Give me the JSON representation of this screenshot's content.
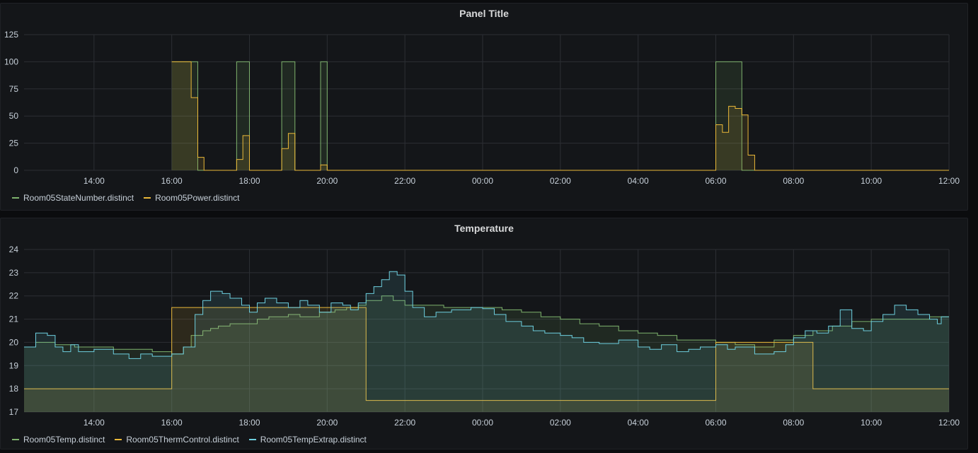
{
  "colors": {
    "green": "#7eb26d",
    "yellow": "#eab839",
    "blue": "#6ed0e0",
    "grid": "#2c2f34"
  },
  "panels": [
    {
      "title": "Panel Title"
    },
    {
      "title": "Temperature"
    }
  ],
  "chart_data": [
    {
      "type": "line",
      "step": true,
      "fill": true,
      "title": "Panel Title",
      "x_unit": "hours since 12:00",
      "xlim": [
        0.2,
        24
      ],
      "x_ticks": [
        2,
        4,
        6,
        8,
        10,
        12,
        14,
        16,
        18,
        20,
        22,
        24
      ],
      "x_tick_labels": [
        "14:00",
        "16:00",
        "18:00",
        "20:00",
        "22:00",
        "00:00",
        "02:00",
        "04:00",
        "06:00",
        "08:00",
        "10:00",
        "12:00"
      ],
      "ylim": [
        0,
        125
      ],
      "y_ticks": [
        0,
        25,
        50,
        75,
        100,
        125
      ],
      "legend": "bottom-left",
      "series": [
        {
          "name": "Room05StateNumber.distinct",
          "color": "#7eb26d",
          "points": [
            [
              4.0,
              100
            ],
            [
              4.67,
              0
            ],
            [
              5.67,
              100
            ],
            [
              6.0,
              0
            ],
            [
              6.83,
              100
            ],
            [
              7.17,
              0
            ],
            [
              7.83,
              100
            ],
            [
              8.0,
              0
            ],
            [
              18.0,
              100
            ],
            [
              18.67,
              0
            ]
          ]
        },
        {
          "name": "Room05Power.distinct",
          "color": "#eab839",
          "points": [
            [
              4.0,
              100
            ],
            [
              4.5,
              67
            ],
            [
              4.67,
              12
            ],
            [
              4.83,
              0
            ],
            [
              5.67,
              10
            ],
            [
              5.83,
              32
            ],
            [
              6.0,
              0
            ],
            [
              6.83,
              20
            ],
            [
              7.0,
              34
            ],
            [
              7.17,
              0
            ],
            [
              7.83,
              5
            ],
            [
              8.0,
              0
            ],
            [
              18.0,
              42
            ],
            [
              18.17,
              35
            ],
            [
              18.33,
              59
            ],
            [
              18.5,
              57
            ],
            [
              18.67,
              51
            ],
            [
              18.83,
              14
            ],
            [
              19.0,
              0
            ]
          ]
        }
      ]
    },
    {
      "type": "line",
      "step": true,
      "fill": true,
      "title": "Temperature",
      "x_unit": "hours since 12:00",
      "xlim": [
        0.2,
        24
      ],
      "x_ticks": [
        2,
        4,
        6,
        8,
        10,
        12,
        14,
        16,
        18,
        20,
        22,
        24
      ],
      "x_tick_labels": [
        "14:00",
        "16:00",
        "18:00",
        "20:00",
        "22:00",
        "00:00",
        "02:00",
        "04:00",
        "06:00",
        "08:00",
        "10:00",
        "12:00"
      ],
      "ylim": [
        17,
        24
      ],
      "y_ticks": [
        17,
        18,
        19,
        20,
        21,
        22,
        23,
        24
      ],
      "legend": "bottom-left",
      "series": [
        {
          "name": "Room05Temp.distinct",
          "color": "#7eb26d",
          "points": [
            [
              0.2,
              19.8
            ],
            [
              0.5,
              20.0
            ],
            [
              1.0,
              19.9
            ],
            [
              1.5,
              19.8
            ],
            [
              2.5,
              19.7
            ],
            [
              3.5,
              19.6
            ],
            [
              4.0,
              19.5
            ],
            [
              4.3,
              19.8
            ],
            [
              4.5,
              20.3
            ],
            [
              4.8,
              20.5
            ],
            [
              5.0,
              20.6
            ],
            [
              5.2,
              20.7
            ],
            [
              5.5,
              20.8
            ],
            [
              6.0,
              20.8
            ],
            [
              6.2,
              21.0
            ],
            [
              6.5,
              21.1
            ],
            [
              7.0,
              21.2
            ],
            [
              7.3,
              21.1
            ],
            [
              7.8,
              21.3
            ],
            [
              8.2,
              21.4
            ],
            [
              8.5,
              21.5
            ],
            [
              8.8,
              21.6
            ],
            [
              9.0,
              21.8
            ],
            [
              9.4,
              22.0
            ],
            [
              9.7,
              21.8
            ],
            [
              10.0,
              21.6
            ],
            [
              10.5,
              21.6
            ],
            [
              11.0,
              21.5
            ],
            [
              12.0,
              21.5
            ],
            [
              12.5,
              21.4
            ],
            [
              13.0,
              21.3
            ],
            [
              13.5,
              21.1
            ],
            [
              14.0,
              21.0
            ],
            [
              14.5,
              20.8
            ],
            [
              15.0,
              20.7
            ],
            [
              15.5,
              20.5
            ],
            [
              16.0,
              20.4
            ],
            [
              16.5,
              20.3
            ],
            [
              17.0,
              20.1
            ],
            [
              18.0,
              20.0
            ],
            [
              18.5,
              19.9
            ],
            [
              19.0,
              19.8
            ],
            [
              19.5,
              20.1
            ],
            [
              20.0,
              20.3
            ],
            [
              20.5,
              20.5
            ],
            [
              21.0,
              20.7
            ],
            [
              21.5,
              20.9
            ],
            [
              22.0,
              21.0
            ],
            [
              23.0,
              21.0
            ],
            [
              23.5,
              21.1
            ],
            [
              24.0,
              21.1
            ]
          ]
        },
        {
          "name": "Room05ThermControl.distinct",
          "color": "#eab839",
          "points": [
            [
              0.2,
              18.0
            ],
            [
              4.0,
              21.5
            ],
            [
              9.0,
              17.5
            ],
            [
              18.0,
              20.0
            ],
            [
              20.5,
              18.0
            ],
            [
              24.0,
              18.0
            ]
          ]
        },
        {
          "name": "Room05TempExtrap.distinct",
          "color": "#6ed0e0",
          "points": [
            [
              0.2,
              19.8
            ],
            [
              0.5,
              20.4
            ],
            [
              0.8,
              20.3
            ],
            [
              1.0,
              19.8
            ],
            [
              1.2,
              19.6
            ],
            [
              1.4,
              19.9
            ],
            [
              1.6,
              19.6
            ],
            [
              2.0,
              19.7
            ],
            [
              2.5,
              19.5
            ],
            [
              2.9,
              19.3
            ],
            [
              3.2,
              19.5
            ],
            [
              3.5,
              19.4
            ],
            [
              4.0,
              19.5
            ],
            [
              4.3,
              19.8
            ],
            [
              4.6,
              21.2
            ],
            [
              4.8,
              21.8
            ],
            [
              5.0,
              22.2
            ],
            [
              5.3,
              22.1
            ],
            [
              5.5,
              21.9
            ],
            [
              5.8,
              21.6
            ],
            [
              6.0,
              21.3
            ],
            [
              6.2,
              21.7
            ],
            [
              6.4,
              21.9
            ],
            [
              6.7,
              21.7
            ],
            [
              7.0,
              21.5
            ],
            [
              7.3,
              21.8
            ],
            [
              7.5,
              21.6
            ],
            [
              7.8,
              21.3
            ],
            [
              8.1,
              21.7
            ],
            [
              8.4,
              21.6
            ],
            [
              8.6,
              21.4
            ],
            [
              8.8,
              21.7
            ],
            [
              9.0,
              22.1
            ],
            [
              9.2,
              22.4
            ],
            [
              9.4,
              22.7
            ],
            [
              9.6,
              23.05
            ],
            [
              9.8,
              22.9
            ],
            [
              10.0,
              22.2
            ],
            [
              10.2,
              21.5
            ],
            [
              10.5,
              21.1
            ],
            [
              10.8,
              21.3
            ],
            [
              11.2,
              21.4
            ],
            [
              11.7,
              21.5
            ],
            [
              12.0,
              21.45
            ],
            [
              12.3,
              21.2
            ],
            [
              12.6,
              20.9
            ],
            [
              13.0,
              20.7
            ],
            [
              13.3,
              20.5
            ],
            [
              13.6,
              20.4
            ],
            [
              14.0,
              20.3
            ],
            [
              14.3,
              20.2
            ],
            [
              14.6,
              20.0
            ],
            [
              15.0,
              19.95
            ],
            [
              15.5,
              20.1
            ],
            [
              16.0,
              19.8
            ],
            [
              16.3,
              19.7
            ],
            [
              16.6,
              19.9
            ],
            [
              17.0,
              19.6
            ],
            [
              17.3,
              19.7
            ],
            [
              17.6,
              19.8
            ],
            [
              18.0,
              19.9
            ],
            [
              18.3,
              19.7
            ],
            [
              18.5,
              19.8
            ],
            [
              19.0,
              19.5
            ],
            [
              19.5,
              19.6
            ],
            [
              19.8,
              19.9
            ],
            [
              20.0,
              20.2
            ],
            [
              20.3,
              20.5
            ],
            [
              20.6,
              20.4
            ],
            [
              20.9,
              20.7
            ],
            [
              21.2,
              21.4
            ],
            [
              21.5,
              20.6
            ],
            [
              21.8,
              20.5
            ],
            [
              22.0,
              20.9
            ],
            [
              22.3,
              21.2
            ],
            [
              22.6,
              21.6
            ],
            [
              22.9,
              21.4
            ],
            [
              23.2,
              21.2
            ],
            [
              23.5,
              21.0
            ],
            [
              23.7,
              20.8
            ],
            [
              23.8,
              21.1
            ],
            [
              24.0,
              21.1
            ]
          ]
        }
      ]
    }
  ]
}
